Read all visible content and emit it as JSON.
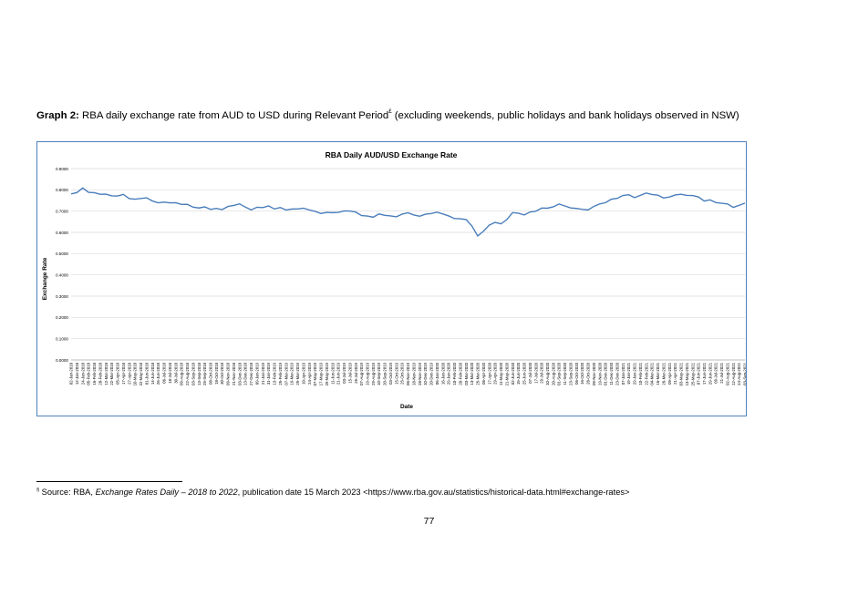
{
  "caption": {
    "label": "Graph 2:",
    "text": " RBA daily exchange rate from AUD to USD during Relevant Period",
    "marker": "£",
    "suffix": " (excluding weekends, public holidays and bank holidays observed in NSW)"
  },
  "footnote": {
    "marker": "§",
    "prefix": " Source: RBA, ",
    "title": "Exchange Rates Daily – 2018 to 2022",
    "suffix": ", publication date 15 March 2023 <https://www.rba.gov.au/statistics/historical-data.html#exchange-rates>"
  },
  "page_number": "77",
  "colors": {
    "line": "#4a7ebb",
    "frame": "#4f81bd",
    "grid": "#d9d9d9"
  },
  "chart_data": {
    "type": "line",
    "title": "RBA Daily AUD/USD Exchange Rate",
    "xlabel": "Date",
    "ylabel": "Exchange Rate",
    "ylim": [
      0,
      0.9
    ],
    "yticks": [
      "0.0000",
      "0.1000",
      "0.2000",
      "0.3000",
      "0.4000",
      "0.5000",
      "0.6000",
      "0.7000",
      "0.8000",
      "0.9000"
    ],
    "grid": true,
    "legend": "none",
    "categories": [
      "02-Jan-2018",
      "12-Jan-2018",
      "24-Jan-2018",
      "05-Feb-2018",
      "16-Feb-2018",
      "28-Feb-2018",
      "12-Mar-2018",
      "22-Mar-2018",
      "05-Apr-2018",
      "17-Apr-2018",
      "27-Apr-2018",
      "10-May-2018",
      "22-May-2018",
      "01-Jun-2018",
      "14-Jun-2018",
      "26-Jun-2018",
      "06-Jul-2018",
      "18-Jul-2018",
      "30-Jul-2018",
      "09-Aug-2018",
      "22-Aug-2018",
      "03-Sep-2018",
      "13-Sep-2018",
      "25-Sep-2018",
      "08-Oct-2018",
      "18-Oct-2018",
      "30-Oct-2018",
      "09-Nov-2018",
      "21-Nov-2018",
      "03-Dec-2018",
      "13-Dec-2018",
      "27-Dec-2018",
      "09-Jan-2019",
      "21-Jan-2019",
      "31-Jan-2019",
      "13-Feb-2019",
      "25-Feb-2019",
      "07-Mar-2019",
      "19-Mar-2019",
      "29-Mar-2019",
      "10-Apr-2019",
      "24-Apr-2019",
      "07-May-2019",
      "17-May-2019",
      "29-May-2019",
      "11-Jun-2019",
      "21-Jun-2019",
      "03-Jul-2019",
      "15-Jul-2019",
      "25-Jul-2019",
      "07-Aug-2019",
      "19-Aug-2019",
      "29-Aug-2019",
      "10-Sep-2019",
      "20-Sep-2019",
      "03-Oct-2019",
      "15-Oct-2019",
      "25-Oct-2019",
      "06-Nov-2019",
      "18-Nov-2019",
      "28-Nov-2019",
      "10-Dec-2019",
      "20-Dec-2019",
      "06-Jan-2020",
      "16-Jan-2020",
      "29-Jan-2020",
      "10-Feb-2020",
      "20-Feb-2020",
      "03-Mar-2020",
      "13-Mar-2020",
      "25-Mar-2020",
      "06-Apr-2020",
      "17-Apr-2020",
      "29-Apr-2020",
      "11-May-2020",
      "21-May-2020",
      "02-Jun-2020",
      "15-Jun-2020",
      "25-Jun-2020",
      "07-Jul-2020",
      "17-Jul-2020",
      "29-Jul-2020",
      "10-Aug-2020",
      "20-Aug-2020",
      "01-Sep-2020",
      "11-Sep-2020",
      "23-Sep-2020",
      "06-Oct-2020",
      "16-Oct-2020",
      "28-Oct-2020",
      "09-Nov-2020",
      "19-Nov-2020",
      "01-Dec-2020",
      "11-Dec-2020",
      "23-Dec-2020",
      "07-Jan-2021",
      "19-Jan-2021",
      "29-Jan-2021",
      "10-Feb-2021",
      "22-Feb-2021",
      "04-Mar-2021",
      "16-Mar-2021",
      "26-Mar-2021",
      "09-Apr-2021",
      "21-Apr-2021",
      "03-May-2021",
      "13-May-2021",
      "25-May-2021",
      "07-Jun-2021",
      "17-Jun-2021",
      "29-Jun-2021",
      "09-Jul-2021",
      "21-Jul-2021",
      "02-Aug-2021",
      "12-Aug-2021",
      "24-Aug-2021",
      "03-Sep-2021"
    ],
    "series": [
      {
        "values": [
          0.7806,
          0.7871,
          0.8087,
          0.7882,
          0.7869,
          0.7794,
          0.7797,
          0.7717,
          0.771,
          0.7785,
          0.7586,
          0.7562,
          0.7593,
          0.7626,
          0.7477,
          0.7392,
          0.7421,
          0.739,
          0.7397,
          0.7315,
          0.7319,
          0.7186,
          0.7147,
          0.7199,
          0.7079,
          0.7127,
          0.707,
          0.7217,
          0.7266,
          0.7342,
          0.7187,
          0.7056,
          0.7182,
          0.7167,
          0.7244,
          0.7101,
          0.7168,
          0.7052,
          0.7098,
          0.7101,
          0.7138,
          0.7055,
          0.6987,
          0.689,
          0.694,
          0.6927,
          0.6941,
          0.7008,
          0.7004,
          0.6955,
          0.6791,
          0.6771,
          0.6714,
          0.6867,
          0.6802,
          0.6775,
          0.6733,
          0.6861,
          0.6922,
          0.6816,
          0.676,
          0.6853,
          0.6888,
          0.695,
          0.6865,
          0.6773,
          0.6649,
          0.6641,
          0.6602,
          0.6301,
          0.583,
          0.6058,
          0.6345,
          0.647,
          0.6401,
          0.6599,
          0.6929,
          0.6904,
          0.682,
          0.6958,
          0.6991,
          0.7143,
          0.7136,
          0.7202,
          0.7336,
          0.7243,
          0.715,
          0.7125,
          0.7084,
          0.7056,
          0.7223,
          0.7338,
          0.7398,
          0.756,
          0.7597,
          0.7734,
          0.7769,
          0.7632,
          0.7741,
          0.7851,
          0.7782,
          0.7751,
          0.7617,
          0.7663,
          0.7759,
          0.7793,
          0.774,
          0.7734,
          0.7664,
          0.7475,
          0.7528,
          0.7402,
          0.7367,
          0.7336,
          0.7175,
          0.7271,
          0.7378
        ]
      }
    ]
  }
}
